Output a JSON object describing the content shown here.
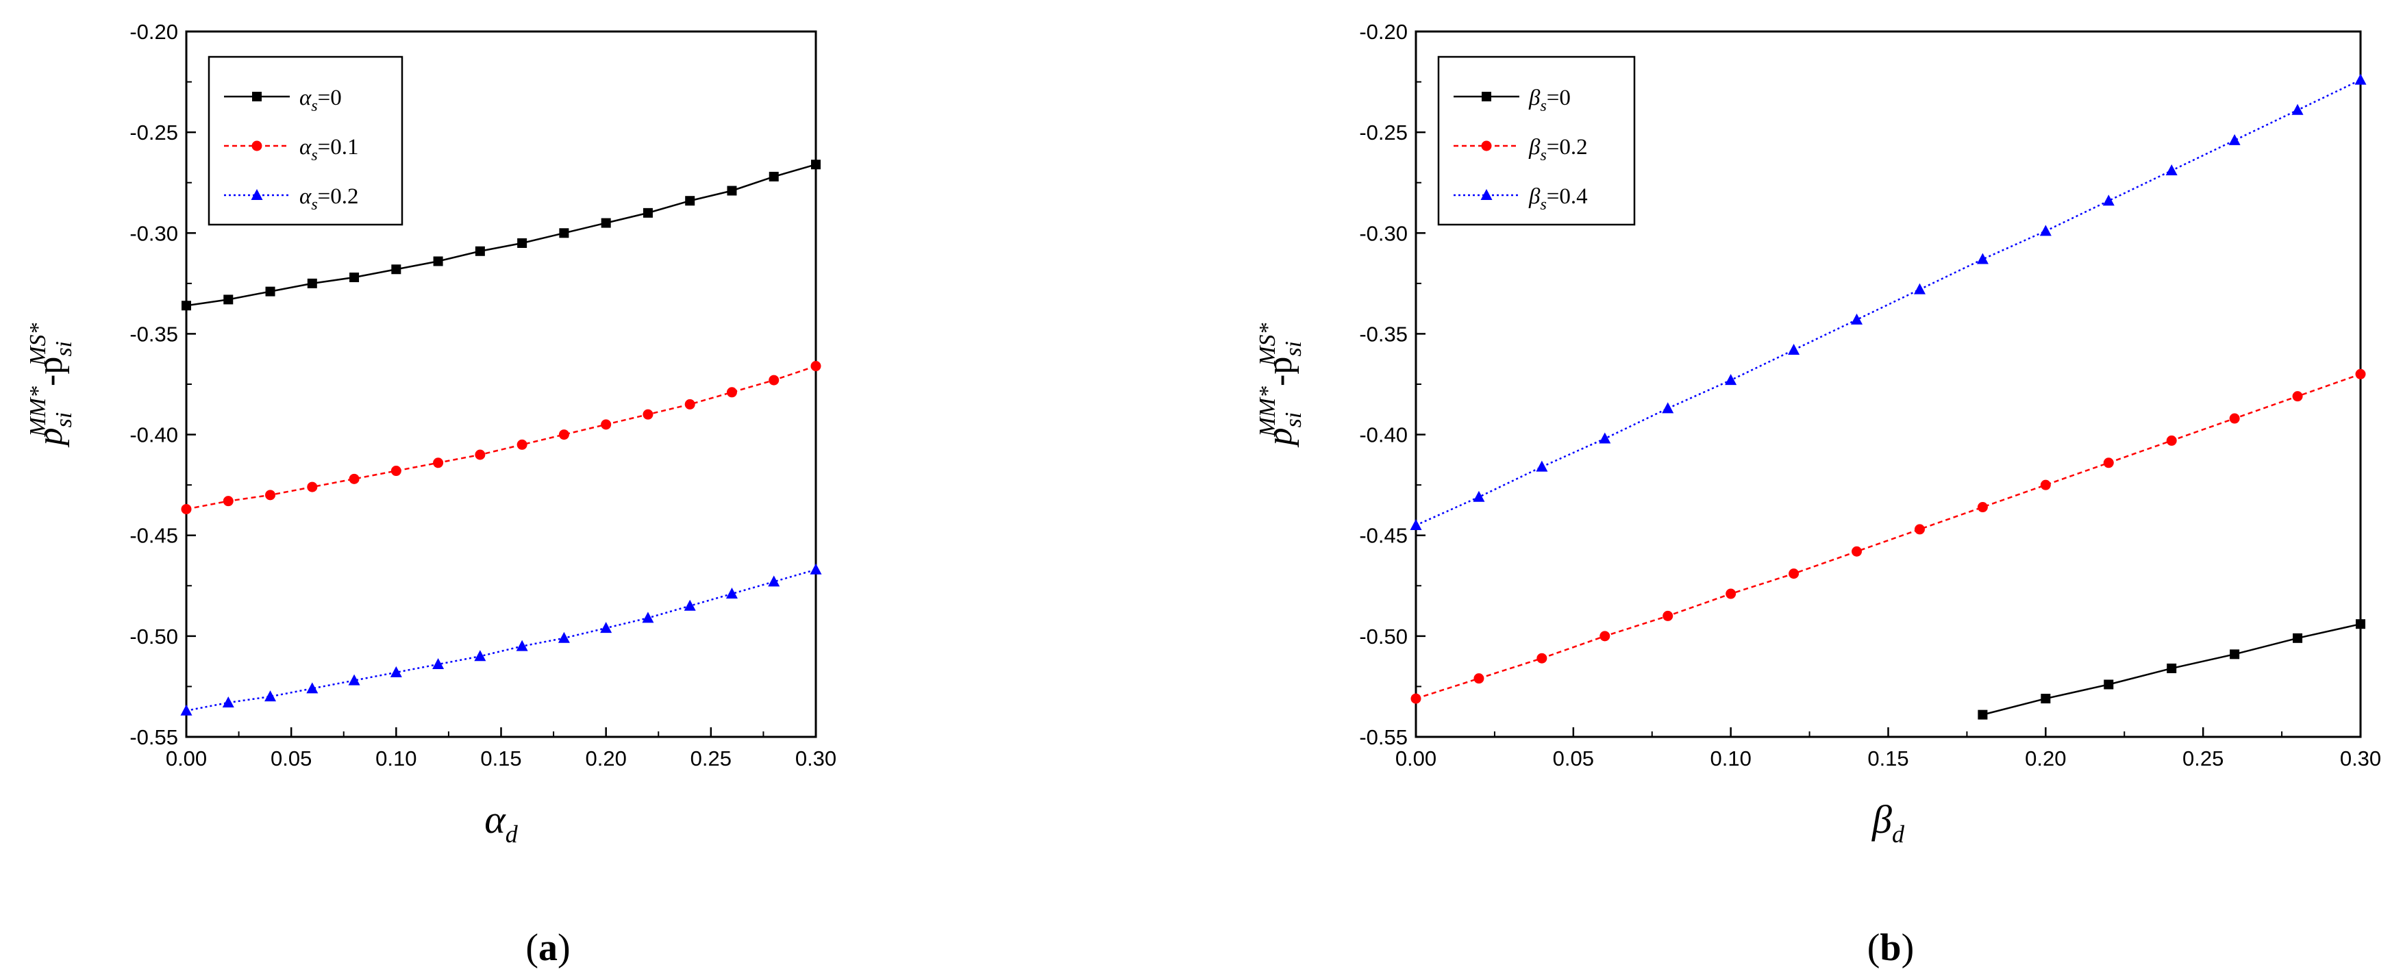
{
  "colors": {
    "black": "#000000",
    "red": "#ff0000",
    "blue": "#0000ff"
  },
  "chart_data": [
    {
      "type": "line",
      "panel": "a",
      "xlim": [
        0,
        0.3
      ],
      "ylim": [
        -0.55,
        -0.2
      ],
      "xticks": [
        "0.00",
        "0.05",
        "0.10",
        "0.15",
        "0.20",
        "0.25",
        "0.30"
      ],
      "yticks": [
        "-0.20",
        "-0.25",
        "-0.30",
        "-0.35",
        "-0.40",
        "-0.45",
        "-0.50",
        "-0.55"
      ],
      "ylabel": {
        "main": "p",
        "sub": "si",
        "sup1": "MM*",
        "mid": "-p",
        "sub2": "si",
        "sup2": "MS*"
      },
      "xlabel": {
        "main": "α",
        "sub": "d"
      },
      "legend_position": "top-left",
      "x": [
        0,
        0.02,
        0.04,
        0.06,
        0.08,
        0.1,
        0.12,
        0.14,
        0.16,
        0.18,
        0.2,
        0.22,
        0.24,
        0.26,
        0.28,
        0.3
      ],
      "series": [
        {
          "name": {
            "sym": "α",
            "sub": "s",
            "val": "=0"
          },
          "color": "#000000",
          "marker": "square",
          "dash": "solid",
          "y": [
            -0.336,
            -0.333,
            -0.329,
            -0.325,
            -0.322,
            -0.318,
            -0.314,
            -0.309,
            -0.305,
            -0.3,
            -0.295,
            -0.29,
            -0.284,
            -0.279,
            -0.272,
            -0.266
          ]
        },
        {
          "name": {
            "sym": "α",
            "sub": "s",
            "val": "=0.1"
          },
          "color": "#ff0000",
          "marker": "circle",
          "dash": "dashed",
          "y": [
            -0.437,
            -0.433,
            -0.43,
            -0.426,
            -0.422,
            -0.418,
            -0.414,
            -0.41,
            -0.405,
            -0.4,
            -0.395,
            -0.39,
            -0.385,
            -0.379,
            -0.373,
            -0.366
          ]
        },
        {
          "name": {
            "sym": "α",
            "sub": "s",
            "val": "=0.2"
          },
          "color": "#0000ff",
          "marker": "triangle",
          "dash": "dotted",
          "y": [
            -0.537,
            -0.533,
            -0.53,
            -0.526,
            -0.522,
            -0.518,
            -0.514,
            -0.51,
            -0.505,
            -0.501,
            -0.496,
            -0.491,
            -0.485,
            -0.479,
            -0.473,
            -0.467
          ]
        }
      ],
      "caption": "a"
    },
    {
      "type": "line",
      "panel": "b",
      "xlim": [
        0,
        0.3
      ],
      "ylim": [
        -0.55,
        -0.2
      ],
      "xticks": [
        "0.00",
        "0.05",
        "0.10",
        "0.15",
        "0.20",
        "0.25",
        "0.30"
      ],
      "yticks": [
        "-0.20",
        "-0.25",
        "-0.30",
        "-0.35",
        "-0.40",
        "-0.45",
        "-0.50",
        "-0.55"
      ],
      "ylabel": {
        "main": "p",
        "sub": "si",
        "sup1": "MM*",
        "mid": "-p",
        "sub2": "si",
        "sup2": "MS*"
      },
      "xlabel": {
        "main": "β",
        "sub": "d"
      },
      "legend_position": "top-left",
      "series": [
        {
          "name": {
            "sym": "β",
            "sub": "s",
            "val": "=0"
          },
          "color": "#000000",
          "marker": "square",
          "dash": "solid",
          "x": [
            0.18,
            0.2,
            0.22,
            0.24,
            0.26,
            0.28,
            0.3
          ],
          "y": [
            -0.539,
            -0.531,
            -0.524,
            -0.516,
            -0.509,
            -0.501,
            -0.494
          ]
        },
        {
          "name": {
            "sym": "β",
            "sub": "s",
            "val": "=0.2"
          },
          "color": "#ff0000",
          "marker": "circle",
          "dash": "dashed",
          "x": [
            0,
            0.02,
            0.04,
            0.06,
            0.08,
            0.1,
            0.12,
            0.14,
            0.16,
            0.18,
            0.2,
            0.22,
            0.24,
            0.26,
            0.28,
            0.3
          ],
          "y": [
            -0.531,
            -0.521,
            -0.511,
            -0.5,
            -0.49,
            -0.479,
            -0.469,
            -0.458,
            -0.447,
            -0.436,
            -0.425,
            -0.414,
            -0.403,
            -0.392,
            -0.381,
            -0.37
          ]
        },
        {
          "name": {
            "sym": "β",
            "sub": "s",
            "val": "=0.4"
          },
          "color": "#0000ff",
          "marker": "triangle",
          "dash": "dotted",
          "x": [
            0,
            0.02,
            0.04,
            0.06,
            0.08,
            0.1,
            0.12,
            0.14,
            0.16,
            0.18,
            0.2,
            0.22,
            0.24,
            0.26,
            0.28,
            0.3
          ],
          "y": [
            -0.445,
            -0.431,
            -0.416,
            -0.402,
            -0.387,
            -0.373,
            -0.358,
            -0.343,
            -0.328,
            -0.313,
            -0.299,
            -0.284,
            -0.269,
            -0.254,
            -0.239,
            -0.224
          ]
        }
      ],
      "caption": "b"
    }
  ]
}
